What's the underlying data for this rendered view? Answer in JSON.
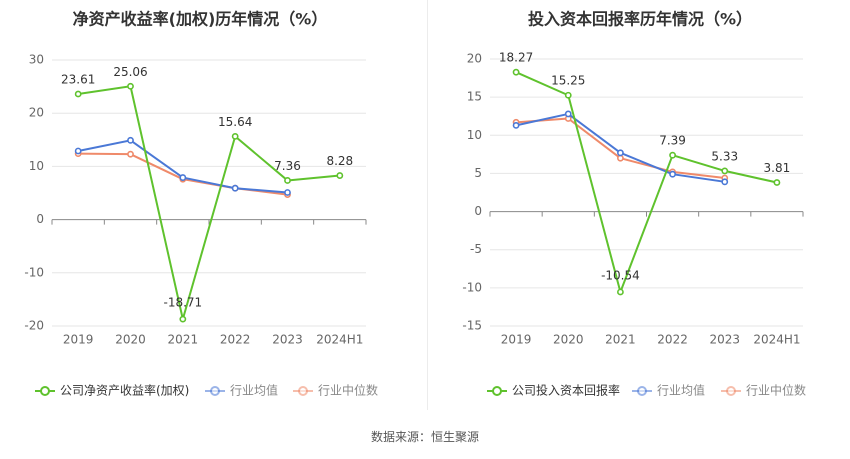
{
  "footer": {
    "source": "数据来源：恒生聚源"
  },
  "colors": {
    "company": "#5fc22d",
    "avg": "#4a78d6",
    "median": "#ef8a6a",
    "grid": "#e6e6e6",
    "axis": "#888888"
  },
  "chart_data": [
    {
      "type": "line",
      "title": "净资产收益率(加权)历年情况（%）",
      "categories": [
        "2019",
        "2020",
        "2021",
        "2022",
        "2023",
        "2024H1"
      ],
      "ylim": [
        -20,
        30
      ],
      "yticks": [
        30,
        20,
        10,
        0,
        -10,
        -20
      ],
      "grid": true,
      "legend_position": "bottom",
      "series": [
        {
          "name": "公司净资产收益率(加权)",
          "values": [
            23.61,
            25.06,
            -18.71,
            15.64,
            7.36,
            8.28
          ],
          "labels": [
            "23.61",
            "25.06",
            "-18.71",
            "15.64",
            "7.36",
            "8.28"
          ]
        },
        {
          "name": "行业均值",
          "values": [
            12.9,
            14.9,
            7.9,
            5.9,
            5.1,
            null
          ]
        },
        {
          "name": "行业中位数",
          "values": [
            12.4,
            12.3,
            7.6,
            5.9,
            4.7,
            null
          ]
        }
      ]
    },
    {
      "type": "line",
      "title": "投入资本回报率历年情况（%）",
      "categories": [
        "2019",
        "2020",
        "2021",
        "2022",
        "2023",
        "2024H1"
      ],
      "ylim": [
        -15,
        20
      ],
      "yticks": [
        20,
        15,
        10,
        5,
        0,
        -5,
        -10,
        -15
      ],
      "grid": true,
      "legend_position": "bottom",
      "series": [
        {
          "name": "公司投入资本回报率",
          "values": [
            18.27,
            15.25,
            -10.54,
            7.39,
            5.33,
            3.81
          ],
          "labels": [
            "18.27",
            "15.25",
            "-10.54",
            "7.39",
            "5.33",
            "3.81"
          ]
        },
        {
          "name": "行业均值",
          "values": [
            11.3,
            12.8,
            7.7,
            4.9,
            3.9,
            null
          ]
        },
        {
          "name": "行业中位数",
          "values": [
            11.7,
            12.2,
            7.0,
            5.2,
            4.4,
            null
          ]
        }
      ]
    }
  ]
}
